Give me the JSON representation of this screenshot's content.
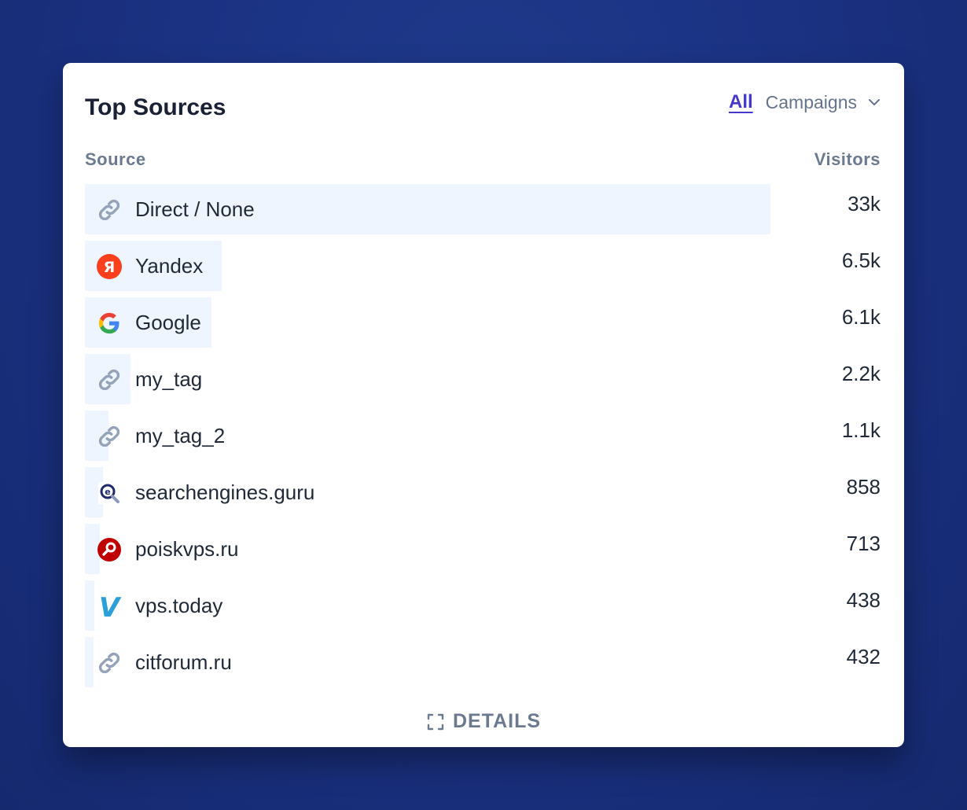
{
  "card": {
    "title": "Top Sources",
    "tabs": {
      "all_label": "All",
      "campaigns_label": "Campaigns"
    },
    "columns": {
      "source": "Source",
      "visitors": "Visitors"
    },
    "details_label": "DETAILS"
  },
  "sources": [
    {
      "label": "Direct / None",
      "value": "33k",
      "icon": "link-icon",
      "bar_fraction": 0.862
    },
    {
      "label": "Yandex",
      "value": "6.5k",
      "icon": "yandex-icon",
      "bar_fraction": 0.172
    },
    {
      "label": "Google",
      "value": "6.1k",
      "icon": "google-icon",
      "bar_fraction": 0.159
    },
    {
      "label": "my_tag",
      "value": "2.2k",
      "icon": "link-icon",
      "bar_fraction": 0.057
    },
    {
      "label": "my_tag_2",
      "value": "1.1k",
      "icon": "link-icon",
      "bar_fraction": 0.03
    },
    {
      "label": "searchengines.guru",
      "value": "858",
      "icon": "searchengines-icon",
      "bar_fraction": 0.023
    },
    {
      "label": "poiskvps.ru",
      "value": "713",
      "icon": "poiskvps-icon",
      "bar_fraction": 0.019
    },
    {
      "label": "vps.today",
      "value": "438",
      "icon": "vps-today-icon",
      "bar_fraction": 0.012
    },
    {
      "label": "citforum.ru",
      "value": "432",
      "icon": "link-icon",
      "bar_fraction": 0.011
    }
  ],
  "colors": {
    "bar": "#eef5ff",
    "accent": "#4338ca",
    "yandex": "#fc3f1d",
    "poiskvps": "#c00000",
    "vps_today": "#2a9fd8"
  }
}
